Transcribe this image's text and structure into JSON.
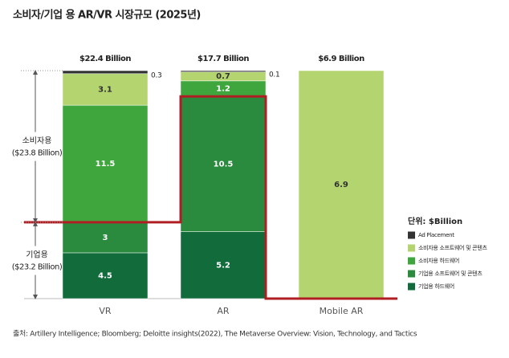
{
  "chart_data": {
    "type": "stacked_bar_normalized",
    "title": "소비자/기업 용 AR/VR 시장규모 (2025년)",
    "categories": [
      "VR",
      "AR",
      "Mobile AR"
    ],
    "totals": {
      "values": [
        22.4,
        17.7,
        6.9
      ],
      "value_labels": [
        "$22.4 Billion",
        "$17.7 Billion",
        "$6.9 Billion"
      ]
    },
    "series": [
      {
        "name": "기업용 하드웨어",
        "color": "#116b3b",
        "values": [
          4.5,
          5.2,
          null
        ]
      },
      {
        "name": "기업용 소프트웨어 및 콘텐츠",
        "color": "#2a8b3f",
        "values": [
          3,
          10.5,
          null
        ]
      },
      {
        "name": "소비자용 하드웨어",
        "color": "#3ea63c",
        "values": [
          11.5,
          1.2,
          null
        ]
      },
      {
        "name": "소비자용 소프트웨어 및 콘텐츠",
        "color": "#b3d46f",
        "values": [
          3.1,
          0.7,
          6.9
        ]
      },
      {
        "name": "Ad Placement",
        "color": "#333333",
        "values": [
          0.3,
          0.1,
          null
        ]
      }
    ],
    "legend_title": "단위: $Billion",
    "groups": [
      {
        "label": "소비자용",
        "note": "($23.8 Billion)"
      },
      {
        "label": "기업용",
        "note": "($23.2 Billion)"
      }
    ],
    "source": "출처: Artillery Intelligence; Bloomberg; Deloitte insights(2022), The Metaverse Overview: Vision, Technology, and Tactics"
  }
}
